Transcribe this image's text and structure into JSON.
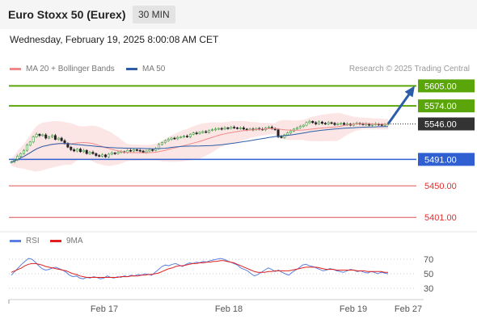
{
  "header": {
    "title": "Euro Stoxx 50 (Eurex)",
    "timeframe": "30 MIN"
  },
  "datetime": "Wednesday, February 19, 2025 8:00:08 AM CET",
  "legend": {
    "items": [
      {
        "label": "MA 20 + Bollinger Bands",
        "color": "#f08a8a"
      },
      {
        "label": "MA 50",
        "color": "#2c5ea8"
      }
    ]
  },
  "copyright": "Research © 2025 Trading Central",
  "rsi_legend": {
    "items": [
      {
        "label": "RSI",
        "color": "#5b7fe0"
      },
      {
        "label": "9MA",
        "color": "#e02020"
      }
    ]
  },
  "colors": {
    "up_candle": "#3a9c3a",
    "down_candle": "#222222",
    "resistance": "#5aa60a",
    "pivot": "#2f5fd0",
    "support": "#e05050",
    "current": "#333333",
    "arrow": "#2c5ea8",
    "bollinger": "#fbe0e0"
  },
  "chart_data": [
    {
      "type": "candlestick",
      "symbol": "Euro Stoxx 50 (Eurex)",
      "interval": "30 MIN",
      "x_labels": [
        "Feb 17",
        "Feb 18",
        "Feb 19",
        "Feb 27"
      ],
      "ylim": [
        5385,
        5618
      ],
      "close_series": [
        5487,
        5490,
        5496,
        5500,
        5505,
        5513,
        5518,
        5526,
        5530,
        5528,
        5529,
        5524,
        5526,
        5528,
        5522,
        5524,
        5520,
        5516,
        5510,
        5506,
        5504,
        5507,
        5503,
        5505,
        5500,
        5502,
        5500,
        5497,
        5496,
        5498,
        5495,
        5499,
        5501,
        5500,
        5502,
        5503,
        5502,
        5505,
        5504,
        5506,
        5505,
        5504,
        5502,
        5504,
        5506,
        5505,
        5508,
        5514,
        5517,
        5520,
        5522,
        5524,
        5523,
        5525,
        5526,
        5527,
        5526,
        5530,
        5532,
        5531,
        5533,
        5534,
        5533,
        5536,
        5537,
        5538,
        5539,
        5538,
        5540,
        5539,
        5541,
        5540,
        5539,
        5540,
        5538,
        5537,
        5538,
        5537,
        5539,
        5538,
        5537,
        5540,
        5541,
        5539,
        5537,
        5526,
        5525,
        5529,
        5532,
        5535,
        5538,
        5540,
        5542,
        5544,
        5548,
        5550,
        5548,
        5546,
        5549,
        5547,
        5546,
        5548,
        5547,
        5545,
        5546,
        5547,
        5545,
        5546,
        5544,
        5546,
        5547,
        5546,
        5545,
        5546,
        5544,
        5545,
        5546,
        5545,
        5544,
        5545,
        5546
      ],
      "levels": [
        {
          "value": "5605.00",
          "kind": "resistance"
        },
        {
          "value": "5574.00",
          "kind": "resistance"
        },
        {
          "value": "5546.00",
          "kind": "current"
        },
        {
          "value": "5491.00",
          "kind": "pivot"
        },
        {
          "value": "5450.00",
          "kind": "support"
        },
        {
          "value": "5401.00",
          "kind": "support"
        }
      ],
      "series": [
        {
          "name": "MA 20 + Bollinger Bands"
        },
        {
          "name": "MA 50"
        }
      ]
    },
    {
      "type": "line",
      "name": "RSI",
      "ylim": [
        20,
        80
      ],
      "y_ticks": [
        "70",
        "50",
        "30"
      ],
      "rsi": [
        48,
        53,
        58,
        63,
        67,
        71,
        70,
        66,
        61,
        57,
        55,
        56,
        58,
        59,
        57,
        55,
        52,
        48,
        46,
        47,
        44,
        43,
        45,
        44,
        46,
        45,
        43,
        44,
        47,
        45,
        44,
        46,
        45,
        47,
        46,
        48,
        47,
        49,
        48,
        50,
        49,
        48,
        52,
        56,
        60,
        62,
        61,
        63,
        64,
        62,
        60,
        63,
        65,
        64,
        66,
        65,
        67,
        66,
        68,
        69,
        70,
        71,
        70,
        68,
        66,
        64,
        62,
        58,
        56,
        54,
        50,
        47,
        49,
        52,
        55,
        58,
        56,
        53,
        55,
        52,
        50,
        48,
        52,
        55,
        58,
        62,
        63,
        61,
        60,
        58,
        56,
        54,
        55,
        57,
        56,
        54,
        53,
        52,
        54,
        56,
        55,
        53,
        54,
        52,
        51,
        53,
        52,
        50,
        52,
        51,
        50
      ],
      "ma9": [
        52,
        54,
        56,
        58,
        61,
        63,
        64,
        64,
        63,
        62,
        60,
        59,
        58,
        57,
        56,
        55,
        54,
        52,
        50,
        49,
        47,
        46,
        45,
        45,
        45,
        45,
        45,
        45,
        45,
        45,
        45,
        45,
        46,
        46,
        46,
        47,
        47,
        47,
        48,
        48,
        49,
        49,
        50,
        51,
        53,
        55,
        57,
        58,
        60,
        61,
        61,
        62,
        63,
        64,
        64,
        65,
        65,
        66,
        66,
        67,
        67,
        68,
        68,
        67,
        66,
        65,
        63,
        61,
        59,
        57,
        55,
        53,
        52,
        52,
        52,
        53,
        53,
        54,
        54,
        54,
        54,
        54,
        55,
        56,
        57,
        58,
        59,
        59,
        59,
        59,
        58,
        57,
        56,
        56,
        56,
        55,
        55,
        55,
        55,
        55,
        55,
        54,
        54,
        54,
        53,
        53,
        53,
        53,
        53,
        52,
        52
      ],
      "series": [
        {
          "name": "RSI"
        },
        {
          "name": "9MA"
        }
      ]
    }
  ]
}
